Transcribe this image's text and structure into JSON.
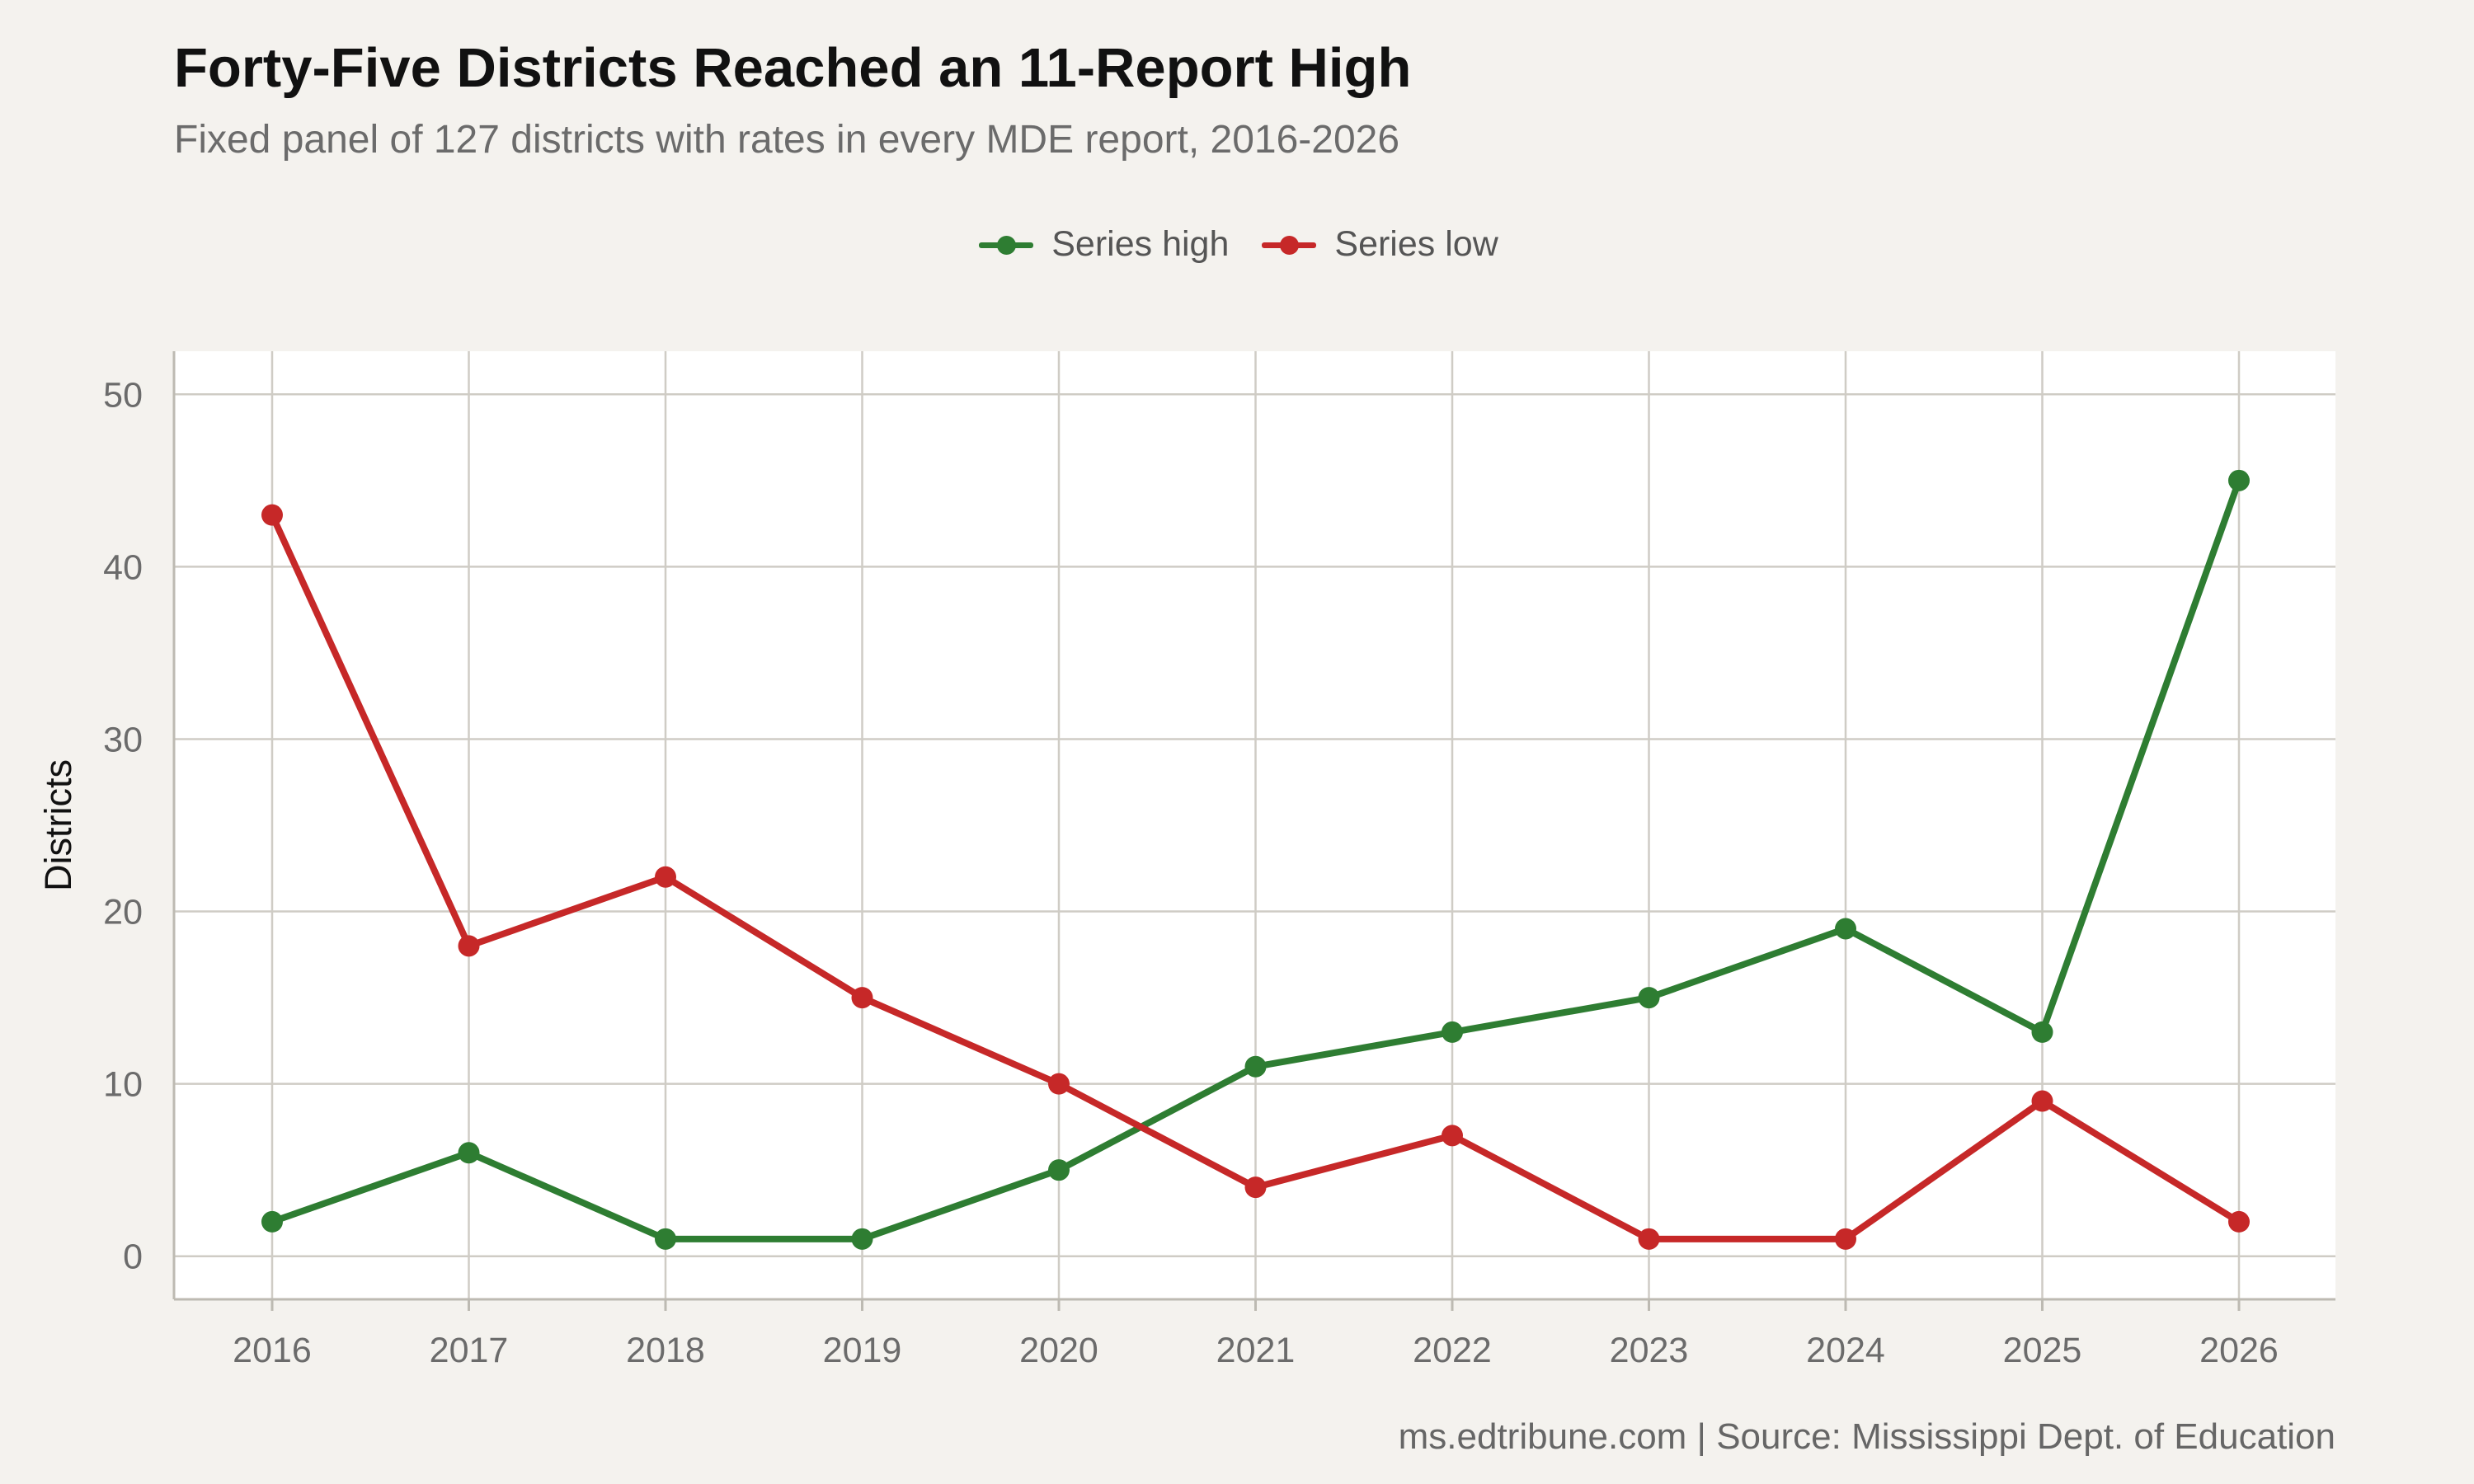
{
  "chart_data": {
    "type": "line",
    "title": "Forty-Five Districts Reached an 11-Report High",
    "subtitle": "Fixed panel of 127 districts with rates in every MDE report, 2016-2026",
    "ylabel": "Districts",
    "xlabel": "",
    "x": [
      "2016",
      "2017",
      "2018",
      "2019",
      "2020",
      "2021",
      "2022",
      "2023",
      "2024",
      "2025",
      "2026"
    ],
    "ylim": [
      -2.5,
      52.5
    ],
    "yticks": [
      0,
      10,
      20,
      30,
      40,
      50
    ],
    "grid": true,
    "legend_position": "top",
    "series": [
      {
        "name": "Series high",
        "color": "#2e7d32",
        "values": [
          2,
          6,
          1,
          1,
          5,
          11,
          13,
          15,
          19,
          13,
          45
        ]
      },
      {
        "name": "Series low",
        "color": "#c62828",
        "values": [
          43,
          18,
          22,
          15,
          10,
          4,
          7,
          1,
          1,
          9,
          2
        ]
      }
    ],
    "caption": "ms.edtribune.com | Source: Mississippi Dept. of Education"
  }
}
